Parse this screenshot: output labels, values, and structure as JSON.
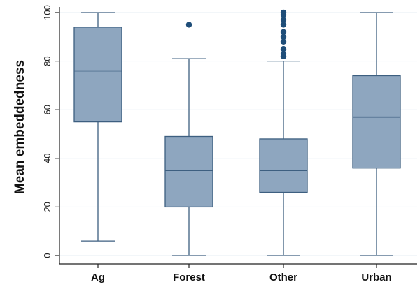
{
  "chart_data": {
    "type": "box",
    "title": "",
    "xlabel": "",
    "ylabel": "Mean embeddedness",
    "ylim": [
      0,
      100
    ],
    "yticks": [
      0,
      20,
      40,
      60,
      80,
      100
    ],
    "grid": true,
    "legend": "none",
    "categories": [
      "Ag",
      "Forest",
      "Other",
      "Urban"
    ],
    "boxes": [
      {
        "category": "Ag",
        "whisker_low": 6,
        "q1": 55,
        "median": 76,
        "q3": 94,
        "whisker_high": 100,
        "outliers": []
      },
      {
        "category": "Forest",
        "whisker_low": 0,
        "q1": 20,
        "median": 35,
        "q3": 49,
        "whisker_high": 81,
        "outliers": [
          95
        ]
      },
      {
        "category": "Other",
        "whisker_low": 0,
        "q1": 26,
        "median": 35,
        "q3": 48,
        "whisker_high": 80,
        "outliers": [
          82,
          83,
          85,
          88,
          90,
          92,
          95,
          97,
          99,
          100
        ]
      },
      {
        "category": "Urban",
        "whisker_low": 0,
        "q1": 36,
        "median": 57,
        "q3": 74,
        "whisker_high": 100,
        "outliers": []
      }
    ],
    "colors": {
      "box_fill": "#8ea6bf",
      "box_stroke": "#3d5f80",
      "outlier": "#1f4e79",
      "grid": "#e6eef3",
      "axis": "#222222"
    }
  }
}
